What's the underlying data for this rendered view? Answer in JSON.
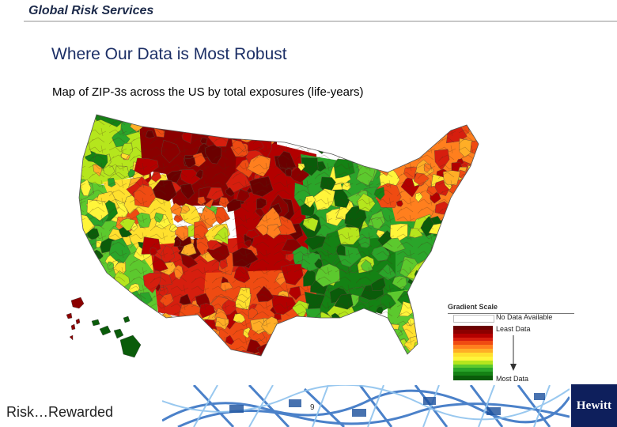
{
  "header": {
    "label": "Global Risk Services"
  },
  "title": "Where Our Data is Most Robust",
  "subtitle": "Map of ZIP-3s across the US by total exposures (life-years)",
  "legend": {
    "title": "Gradient Scale",
    "no_data_label": "No Data Available",
    "least_label": "Least Data",
    "most_label": "Most Data",
    "no_data_color": "#ffffff",
    "colors": [
      "#6b0000",
      "#8b0000",
      "#b30000",
      "#d61e0e",
      "#ef4b12",
      "#ff7f1e",
      "#ffae26",
      "#ffe02e",
      "#fff53a",
      "#b5e61d",
      "#5cc92e",
      "#2aa52a",
      "#148214",
      "#0a5c0a"
    ]
  },
  "footer": {
    "tagline": "Risk…Rewarded",
    "page_number": "9",
    "logo_text": "Hewitt"
  },
  "map": {
    "regions": [
      {
        "name": "pacific-northwest",
        "level": 9
      },
      {
        "name": "california",
        "level": 10
      },
      {
        "name": "great-basin",
        "level": 7
      },
      {
        "name": "northern-rockies",
        "level": 1
      },
      {
        "name": "southwest",
        "level": 3
      },
      {
        "name": "great-plains",
        "level": 2
      },
      {
        "name": "texas",
        "level": 4
      },
      {
        "name": "midwest",
        "level": 11
      },
      {
        "name": "south",
        "level": 12
      },
      {
        "name": "southeast",
        "level": 11
      },
      {
        "name": "florida",
        "level": 10
      },
      {
        "name": "northeast",
        "level": 5
      },
      {
        "name": "alaska",
        "level": 1
      },
      {
        "name": "hawaii",
        "level": 13
      }
    ]
  }
}
